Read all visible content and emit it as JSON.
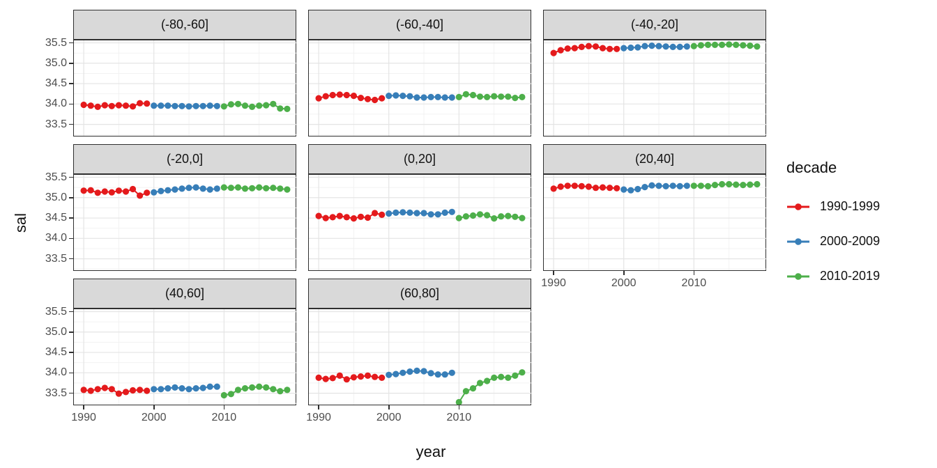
{
  "chart_data": {
    "type": "line",
    "title": "",
    "xlabel": "year",
    "ylabel": "sal",
    "x_ticks": [
      1990,
      2000,
      2010
    ],
    "x_tick_labels": [
      "1990",
      "2000",
      "2010"
    ],
    "y_ticks": [
      35.5,
      35.0,
      34.5,
      34.0,
      33.5
    ],
    "y_tick_labels": [
      "35.5",
      "35.0",
      "34.5",
      "34.0",
      "33.5"
    ],
    "xlim": [
      1988.6,
      2020.4
    ],
    "ylim": [
      33.22,
      35.56
    ],
    "x_minor_gridlines": [
      1995,
      2005,
      2015
    ],
    "y_minor_gridlines": [
      33.25,
      33.75,
      34.25,
      34.75,
      35.25
    ],
    "grid": "major+minor",
    "panel_colors": {
      "strip_bg": "#d9d9d9",
      "border": "#2f2f2f",
      "grid_major": "#e4e4e4",
      "grid_minor": "#f1f1f1"
    },
    "legend": {
      "title": "decade",
      "position": "right",
      "entries": [
        {
          "label": "1990-1999",
          "color": "#E41A1C",
          "start_year": 1990
        },
        {
          "label": "2000-2009",
          "color": "#377EB8",
          "start_year": 2000
        },
        {
          "label": "2010-2019",
          "color": "#4DAF4A",
          "start_year": 2010
        }
      ]
    },
    "facets": [
      {
        "label": "(-80,-60]",
        "series": [
          {
            "name": "1990-1999",
            "start_year": 1990,
            "values": [
              33.98,
              33.96,
              33.93,
              33.97,
              33.95,
              33.97,
              33.96,
              33.94,
              34.02,
              34.01
            ]
          },
          {
            "name": "2000-2009",
            "start_year": 2000,
            "values": [
              33.96,
              33.96,
              33.96,
              33.95,
              33.95,
              33.94,
              33.95,
              33.95,
              33.96,
              33.95
            ]
          },
          {
            "name": "2010-2019",
            "start_year": 2010,
            "values": [
              33.94,
              33.99,
              34.0,
              33.96,
              33.93,
              33.96,
              33.97,
              34.0,
              33.89,
              33.88
            ]
          }
        ]
      },
      {
        "label": "(-60,-40]",
        "series": [
          {
            "name": "1990-1999",
            "start_year": 1990,
            "values": [
              34.14,
              34.19,
              34.22,
              34.23,
              34.22,
              34.2,
              34.15,
              34.12,
              34.1,
              34.14
            ]
          },
          {
            "name": "2000-2009",
            "start_year": 2000,
            "values": [
              34.2,
              34.21,
              34.2,
              34.19,
              34.16,
              34.16,
              34.17,
              34.17,
              34.16,
              34.16
            ]
          },
          {
            "name": "2010-2019",
            "start_year": 2010,
            "values": [
              34.17,
              34.24,
              34.22,
              34.18,
              34.17,
              34.19,
              34.18,
              34.18,
              34.15,
              34.17
            ]
          }
        ]
      },
      {
        "label": "(-40,-20]",
        "series": [
          {
            "name": "1990-1999",
            "start_year": 1990,
            "values": [
              35.25,
              35.32,
              35.36,
              35.37,
              35.4,
              35.42,
              35.41,
              35.37,
              35.35,
              35.35
            ]
          },
          {
            "name": "2000-2009",
            "start_year": 2000,
            "values": [
              35.37,
              35.38,
              35.39,
              35.42,
              35.43,
              35.42,
              35.41,
              35.4,
              35.4,
              35.41
            ]
          },
          {
            "name": "2010-2019",
            "start_year": 2010,
            "values": [
              35.42,
              35.44,
              35.45,
              35.45,
              35.45,
              35.46,
              35.45,
              35.44,
              35.43,
              35.41
            ]
          }
        ]
      },
      {
        "label": "(-20,0]",
        "series": [
          {
            "name": "1990-1999",
            "start_year": 1990,
            "values": [
              35.17,
              35.18,
              35.12,
              35.15,
              35.13,
              35.17,
              35.15,
              35.21,
              35.05,
              35.12
            ]
          },
          {
            "name": "2000-2009",
            "start_year": 2000,
            "values": [
              35.13,
              35.16,
              35.18,
              35.2,
              35.22,
              35.24,
              35.25,
              35.22,
              35.2,
              35.22
            ]
          },
          {
            "name": "2010-2019",
            "start_year": 2010,
            "values": [
              35.25,
              35.24,
              35.25,
              35.22,
              35.23,
              35.25,
              35.23,
              35.24,
              35.22,
              35.2
            ]
          }
        ]
      },
      {
        "label": "(0,20]",
        "series": [
          {
            "name": "1990-1999",
            "start_year": 1990,
            "values": [
              34.55,
              34.5,
              34.52,
              34.55,
              34.52,
              34.49,
              34.53,
              34.51,
              34.62,
              34.58
            ]
          },
          {
            "name": "2000-2009",
            "start_year": 2000,
            "values": [
              34.61,
              34.63,
              34.64,
              34.63,
              34.62,
              34.62,
              34.59,
              34.59,
              34.63,
              34.65
            ]
          },
          {
            "name": "2010-2019",
            "start_year": 2010,
            "values": [
              34.5,
              34.54,
              34.56,
              34.59,
              34.57,
              34.49,
              34.54,
              34.55,
              34.53,
              34.5
            ]
          }
        ]
      },
      {
        "label": "(20,40]",
        "series": [
          {
            "name": "1990-1999",
            "start_year": 1990,
            "values": [
              35.22,
              35.27,
              35.29,
              35.29,
              35.28,
              35.27,
              35.24,
              35.25,
              35.24,
              35.23
            ]
          },
          {
            "name": "2000-2009",
            "start_year": 2000,
            "values": [
              35.2,
              35.18,
              35.21,
              35.26,
              35.3,
              35.29,
              35.28,
              35.29,
              35.28,
              35.29
            ]
          },
          {
            "name": "2010-2019",
            "start_year": 2010,
            "values": [
              35.29,
              35.29,
              35.28,
              35.31,
              35.33,
              35.33,
              35.32,
              35.31,
              35.32,
              35.33
            ]
          }
        ]
      },
      {
        "label": "(40,60]",
        "series": [
          {
            "name": "1990-1999",
            "start_year": 1990,
            "values": [
              33.58,
              33.56,
              33.6,
              33.63,
              33.6,
              33.49,
              33.53,
              33.57,
              33.58,
              33.56
            ]
          },
          {
            "name": "2000-2009",
            "start_year": 2000,
            "values": [
              33.6,
              33.6,
              33.62,
              33.64,
              33.62,
              33.6,
              33.62,
              33.63,
              33.66,
              33.66
            ]
          },
          {
            "name": "2010-2019",
            "start_year": 2010,
            "values": [
              33.45,
              33.48,
              33.58,
              33.62,
              33.64,
              33.66,
              33.64,
              33.6,
              33.55,
              33.58
            ]
          }
        ]
      },
      {
        "label": "(60,80]",
        "series": [
          {
            "name": "1990-1999",
            "start_year": 1990,
            "values": [
              33.88,
              33.85,
              33.87,
              33.93,
              33.84,
              33.89,
              33.91,
              33.93,
              33.9,
              33.88
            ]
          },
          {
            "name": "2000-2009",
            "start_year": 2000,
            "values": [
              33.95,
              33.97,
              34.0,
              34.03,
              34.05,
              34.04,
              33.99,
              33.96,
              33.96,
              34.0
            ]
          },
          {
            "name": "2010-2019",
            "start_year": 2010,
            "values": [
              33.28,
              33.55,
              33.62,
              33.75,
              33.8,
              33.88,
              33.9,
              33.88,
              33.93,
              34.01
            ]
          }
        ]
      }
    ]
  }
}
